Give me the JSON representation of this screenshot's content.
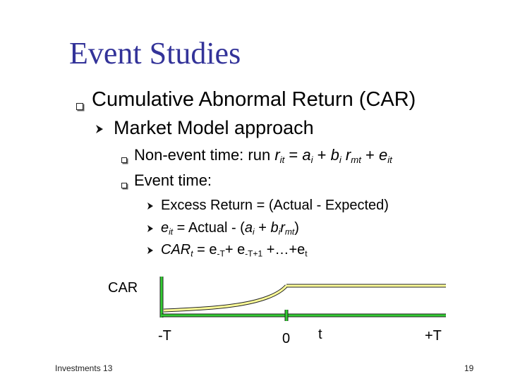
{
  "title": "Event Studies",
  "bullet1": "Cumulative Abnormal Return (CAR)",
  "bullet2": "Market Model approach",
  "bullet3": {
    "prefix": "Non-event time: run ",
    "r": "r",
    "r_sub": "it",
    "eq": " = ",
    "a": "a",
    "a_sub": "i",
    "plus1": " + ",
    "b": "b",
    "b_sub": "i",
    "space": " ",
    "r2": "r",
    "r2_sub": "mt",
    "plus2": " + ",
    "e": "e",
    "e_sub": "it"
  },
  "bullet4": "Event time:",
  "sub1": "Excess Return = (Actual - Expected)",
  "sub2": {
    "e": "e",
    "e_sub": "it",
    "rest1": " = Actual - (",
    "a": "a",
    "a_sub": "i",
    "plus": " + ",
    "b": "b",
    "b_sub": "i",
    "r": "r",
    "r_sub": "mt",
    "close": ")"
  },
  "sub3": {
    "car": "CAR",
    "car_sub": "t",
    "eq": " = e",
    "e1_sub": "-T",
    "plus1": "+ e",
    "e2_sub": "-T+1",
    "rest": " +…+e",
    "e3_sub": "t"
  },
  "diagram": {
    "y_label": "CAR",
    "tick_left": "-T",
    "tick_zero": "0",
    "tick_t": "t",
    "tick_right": "+T"
  },
  "footer": "Investments 13",
  "page_number": "19",
  "colors": {
    "title": "#333399",
    "axis": "#33cc33",
    "curve": "#ffff99"
  }
}
